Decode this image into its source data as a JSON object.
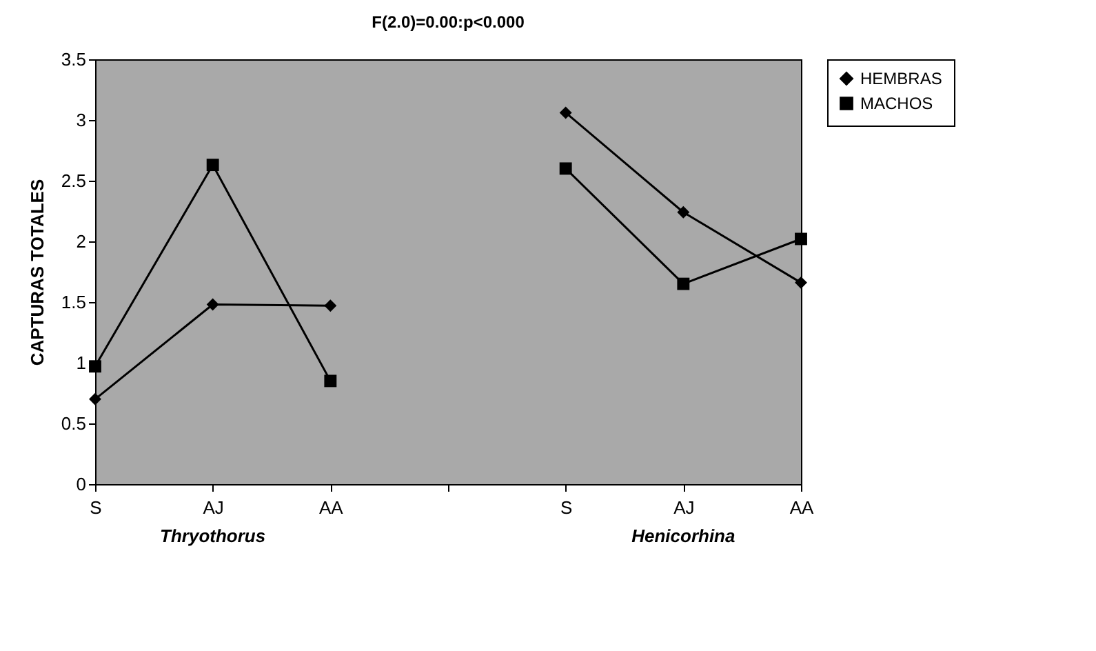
{
  "chart_data": {
    "type": "line",
    "title": "F(2.0)=0.00:p<0.000",
    "ylabel": "CAPTURAS TOTALES",
    "categories": [
      "S",
      "AJ",
      "AA",
      null,
      "S",
      "AJ",
      "AA"
    ],
    "series": [
      {
        "name": "HEMBRAS",
        "color": "#000000",
        "marker": "diamond",
        "values": [
          0.7,
          1.48,
          1.47,
          null,
          3.06,
          2.24,
          1.66
        ]
      },
      {
        "name": "MACHOS",
        "color": "#000000",
        "marker": "square",
        "values": [
          0.97,
          2.63,
          0.85,
          null,
          2.6,
          1.65,
          2.02
        ]
      }
    ],
    "annotations": [
      "Thryothorus",
      "Henicorhina"
    ],
    "ylim": [
      0,
      3.5
    ],
    "yticks": [
      0,
      0.5,
      1,
      1.5,
      2,
      2.5,
      3,
      3.5
    ],
    "grid": false,
    "legend": "right",
    "line_style": "solid"
  }
}
